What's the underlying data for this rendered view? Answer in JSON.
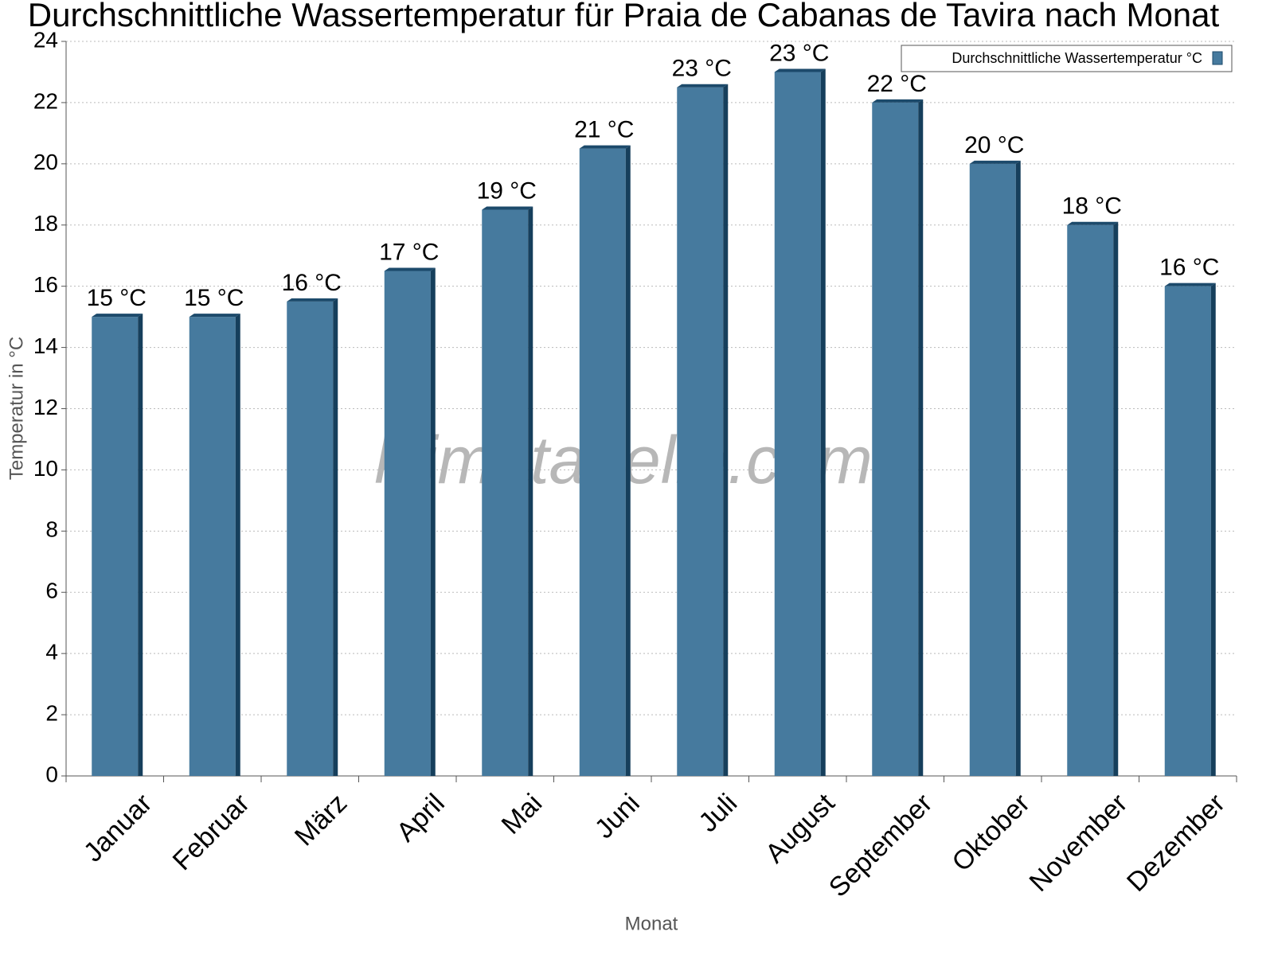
{
  "chart_data": {
    "type": "bar",
    "title": "Durchschnittliche Wassertemperatur für Praia de Cabanas de Tavira nach Monat",
    "x_label": "Monat",
    "y_label": "Temperatur in °C",
    "watermark": "klimatabelle.com",
    "categories": [
      "Januar",
      "Februar",
      "März",
      "April",
      "Mai",
      "Juni",
      "Juli",
      "August",
      "September",
      "Oktober",
      "November",
      "Dezember"
    ],
    "series": [
      {
        "name": "Durchschnittliche Wassertemperatur °C",
        "color": "#467a9e",
        "values": [
          15,
          15,
          15.5,
          16.5,
          18.5,
          20.5,
          22.5,
          23,
          22,
          20,
          18,
          16
        ],
        "value_labels": [
          "15 °C",
          "15 °C",
          "16 °C",
          "17 °C",
          "19 °C",
          "21 °C",
          "23 °C",
          "23 °C",
          "22 °C",
          "20 °C",
          "18 °C",
          "16 °C"
        ]
      }
    ],
    "ylim": [
      0,
      24
    ],
    "yticks": [
      0,
      2,
      4,
      6,
      8,
      10,
      12,
      14,
      16,
      18,
      20,
      22,
      24
    ],
    "grid": true,
    "legend": "top-right"
  }
}
